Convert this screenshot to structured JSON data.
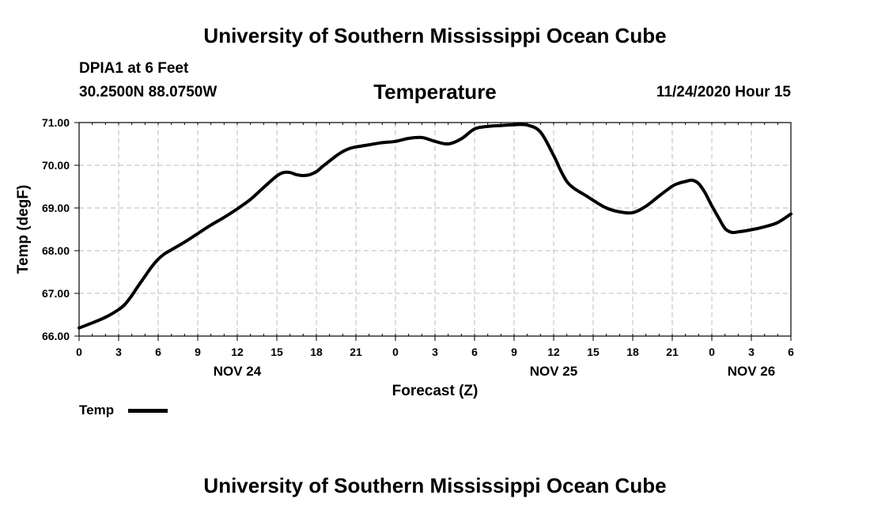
{
  "header": {
    "org_title": "University of Southern Mississippi Ocean Cube",
    "station": "DPIA1 at 6 Feet",
    "coords": "30.2500N 88.0750W",
    "variable": "Temperature",
    "datetime": "11/24/2020 Hour 15"
  },
  "footer": {
    "org_title": "University of Southern Mississippi Ocean Cube"
  },
  "legend": {
    "label": "Temp"
  },
  "chart_data": {
    "type": "line",
    "title": "Temperature",
    "xlabel": "Forecast (Z)",
    "ylabel": "Temp (degF)",
    "xlim": [
      0,
      54
    ],
    "ylim": [
      66.0,
      71.0
    ],
    "grid": true,
    "line_color": "#000000",
    "yticks": [
      "66.00",
      "67.00",
      "68.00",
      "69.00",
      "70.00",
      "71.00"
    ],
    "xticks": [
      "0",
      "3",
      "6",
      "9",
      "12",
      "15",
      "18",
      "21",
      "0",
      "3",
      "6",
      "9",
      "12",
      "15",
      "18",
      "21",
      "0",
      "3",
      "6"
    ],
    "date_labels": [
      {
        "label": "NOV 24",
        "at_hour": 12
      },
      {
        "label": "NOV 25",
        "at_hour": 36
      },
      {
        "label": "NOV 26",
        "at_hour": 51
      }
    ],
    "series": [
      {
        "name": "Temp",
        "x": [
          0,
          1,
          2,
          3,
          3.5,
          4,
          4.5,
          5,
          5.5,
          6,
          6.5,
          7,
          8,
          9,
          10,
          11,
          12,
          13,
          14,
          15,
          15.5,
          16,
          16.5,
          17,
          17.5,
          18,
          18.5,
          19,
          19.5,
          20,
          20.5,
          21,
          22,
          23,
          24,
          25,
          26,
          27,
          28,
          29,
          30,
          31,
          32,
          33,
          34,
          35,
          36,
          36.5,
          37,
          37.5,
          38,
          38.5,
          39,
          40,
          41,
          42,
          43,
          44,
          45,
          45.5,
          46,
          46.5,
          47,
          47.5,
          48,
          48.5,
          49,
          49.5,
          50,
          51,
          52,
          53,
          54
        ],
        "values": [
          66.19,
          66.31,
          66.44,
          66.62,
          66.75,
          66.95,
          67.18,
          67.4,
          67.62,
          67.8,
          67.93,
          68.02,
          68.2,
          68.4,
          68.6,
          68.78,
          68.98,
          69.2,
          69.48,
          69.75,
          69.83,
          69.83,
          69.78,
          69.76,
          69.78,
          69.85,
          69.98,
          70.1,
          70.22,
          70.32,
          70.39,
          70.43,
          70.48,
          70.53,
          70.56,
          70.63,
          70.65,
          70.56,
          70.5,
          70.62,
          70.85,
          70.91,
          70.93,
          70.95,
          70.94,
          70.78,
          70.23,
          69.9,
          69.62,
          69.47,
          69.37,
          69.28,
          69.18,
          69.0,
          68.91,
          68.89,
          69.04,
          69.28,
          69.51,
          69.58,
          69.62,
          69.65,
          69.57,
          69.35,
          69.05,
          68.78,
          68.52,
          68.43,
          68.44,
          68.49,
          68.56,
          68.66,
          68.86
        ]
      }
    ]
  }
}
